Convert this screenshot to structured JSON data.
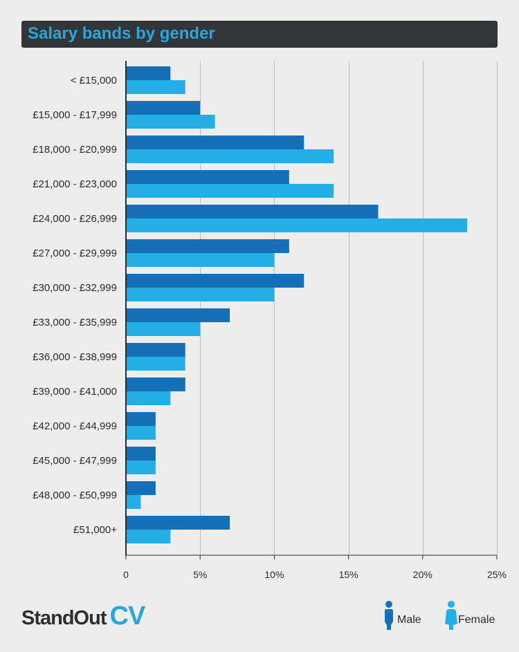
{
  "title": "Salary bands by gender",
  "chart_data": {
    "type": "bar",
    "orientation": "horizontal",
    "categories": [
      "< £15,000",
      "£15,000 - £17,999",
      "£18,000 - £20,999",
      "£21,000 - £23,000",
      "£24,000 - £26,999",
      "£27,000 - £29,999",
      "£30,000 - £32,999",
      "£33,000 - £35,999",
      "£36,000 - £38,999",
      "£39,000 - £41,000",
      "£42,000 - £44,999",
      "£45,000 - £47,999",
      "£48,000 - £50,999",
      "£51,000+"
    ],
    "series": [
      {
        "name": "Male",
        "color": "#1570b8",
        "values": [
          3,
          5,
          12,
          11,
          17,
          11,
          12,
          7,
          4,
          4,
          2,
          2,
          2,
          7
        ]
      },
      {
        "name": "Female",
        "color": "#24aee6",
        "values": [
          4,
          6,
          14,
          14,
          23,
          10,
          10,
          5,
          4,
          3,
          2,
          2,
          1,
          3
        ]
      }
    ],
    "xlim": [
      0,
      25
    ],
    "xticks": [
      "0",
      "5%",
      "10%",
      "15%",
      "20%",
      "25%"
    ],
    "xtick_values": [
      0,
      5,
      10,
      15,
      20,
      25
    ],
    "grid": true,
    "legend_position": "bottom-right"
  },
  "logo": {
    "part1": "StandOut",
    "part2": "CV"
  },
  "legend": {
    "male_label": "Male",
    "female_label": "Female"
  }
}
